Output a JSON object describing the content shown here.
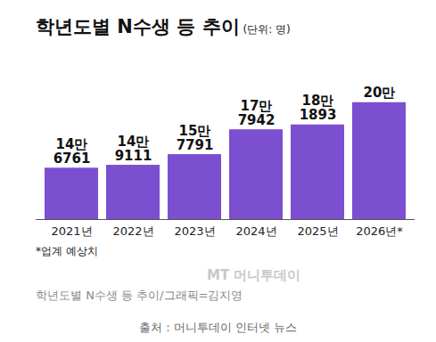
{
  "chart_data": {
    "type": "bar",
    "title": "학년도별 N수생 등 추이",
    "subtitle": "(단위: 명)",
    "categories": [
      "2021년",
      "2022년",
      "2023년",
      "2024년",
      "2025년",
      "2026년*"
    ],
    "values": [
      146761,
      149111,
      157791,
      177942,
      181893,
      200000
    ],
    "value_labels": [
      "14만\n6761",
      "14만\n9111",
      "15만\n7791",
      "17만\n7942",
      "18만\n1893",
      "20만"
    ],
    "color": "#7b4fd0",
    "ylim": [
      105000,
      215000
    ],
    "data_labels": true,
    "tick_labels": "x",
    "annotations": [
      "*업계 예상치",
      "MT 머니투데이",
      "학년도별 N수생 등 추이/그래픽=김지영",
      "출처 : 머니투데이 인터넷 뉴스"
    ]
  }
}
